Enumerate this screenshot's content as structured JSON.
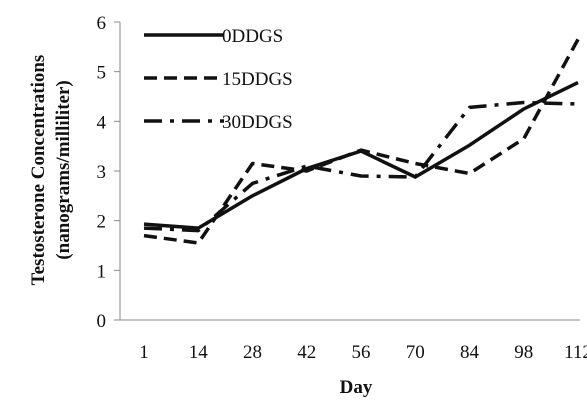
{
  "chart_data": {
    "type": "line",
    "title": "",
    "xlabel": "Day",
    "ylabel": "Testosterone Concentrations (nanograms/milliliter)",
    "ylabel_lines": [
      "Testosterone Concentrations",
      "(nanograms/milliliter)"
    ],
    "categories": [
      "1",
      "14",
      "28",
      "42",
      "56",
      "70",
      "84",
      "98",
      "112"
    ],
    "y_ticks": [
      "0",
      "1",
      "2",
      "3",
      "4",
      "5",
      "6"
    ],
    "ylim": [
      0,
      6
    ],
    "grid": false,
    "legend_position": "top-left",
    "series": [
      {
        "name": "0DDGS",
        "dash": "solid",
        "values": [
          1.93,
          1.85,
          2.5,
          3.05,
          3.4,
          2.88,
          3.52,
          4.25,
          4.78
        ]
      },
      {
        "name": "15DDGS",
        "dash": "dashed",
        "values": [
          1.7,
          1.55,
          3.15,
          3.0,
          3.42,
          3.15,
          2.95,
          3.65,
          5.65
        ]
      },
      {
        "name": "30DDGS",
        "dash": "dash-dot",
        "values": [
          1.85,
          1.8,
          2.75,
          3.1,
          2.9,
          2.88,
          4.28,
          4.38,
          4.35
        ]
      }
    ],
    "line_color": "#111111"
  }
}
